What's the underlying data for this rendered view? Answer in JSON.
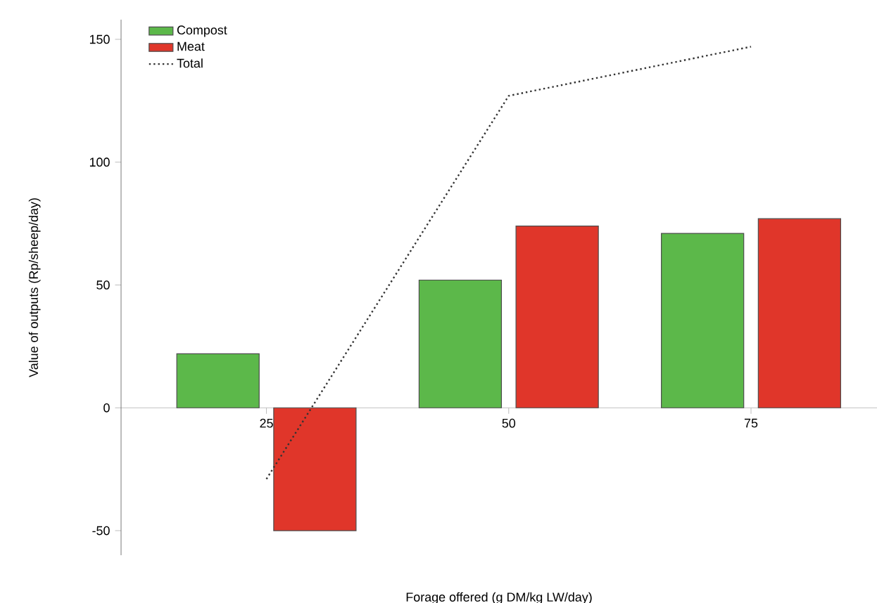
{
  "chart_data": {
    "type": "bar",
    "xlabel": "Forage offered (g DM/kg LW/day)",
    "ylabel": "Value of outputs (Rp/sheep/day)",
    "x": [
      25,
      50,
      75
    ],
    "series": [
      {
        "name": "Compost",
        "color": "#5cb84a",
        "values": [
          22,
          52,
          71
        ]
      },
      {
        "name": "Meat",
        "color": "#e0362a",
        "values": [
          -50,
          74,
          77
        ]
      },
      {
        "name": "Total",
        "type": "line",
        "color": "#333333",
        "line_style": "dotted",
        "marker": "none",
        "values": [
          -29,
          127,
          147
        ]
      }
    ],
    "xlim": [
      10,
      88
    ],
    "xticks": [
      25,
      50,
      75
    ],
    "ylim": [
      -60,
      158
    ],
    "yticks": [
      -50,
      0,
      50,
      100,
      150
    ],
    "grid": false,
    "legend": "top left"
  }
}
